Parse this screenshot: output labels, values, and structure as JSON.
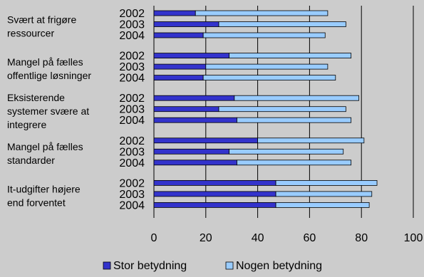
{
  "chart_data": {
    "type": "bar",
    "orientation": "horizontal",
    "stacked": true,
    "groups": [
      {
        "label_lines": [
          "Svært at frigøre",
          "ressourcer"
        ],
        "years": [
          "2002",
          "2003",
          "2004"
        ],
        "stor": [
          16,
          25,
          19
        ],
        "nogen": [
          51,
          49,
          47
        ]
      },
      {
        "label_lines": [
          "Mangel på fælles",
          "offentlige løsninger"
        ],
        "years": [
          "2002",
          "2003",
          "2004"
        ],
        "stor": [
          29,
          20,
          19
        ],
        "nogen": [
          47,
          47,
          51
        ]
      },
      {
        "label_lines": [
          "Eksisterende",
          "systemer svære at",
          "integrere"
        ],
        "years": [
          "2002",
          "2003",
          "2004"
        ],
        "stor": [
          31,
          25,
          32
        ],
        "nogen": [
          48,
          49,
          44
        ]
      },
      {
        "label_lines": [
          "Mangel på fælles",
          "standarder"
        ],
        "years": [
          "2002",
          "2003",
          "2004"
        ],
        "stor": [
          40,
          29,
          32
        ],
        "nogen": [
          41,
          44,
          44
        ]
      },
      {
        "label_lines": [
          "It-udgifter højere",
          "end forventet"
        ],
        "years": [
          "2002",
          "2003",
          "2004"
        ],
        "stor": [
          47,
          47,
          47
        ],
        "nogen": [
          39,
          37,
          36
        ]
      }
    ],
    "series": [
      {
        "name": "Stor betydning",
        "color": "#3333cc"
      },
      {
        "name": "Nogen betydning",
        "color": "#99ccff"
      }
    ],
    "xlim": [
      0,
      100
    ],
    "xticks": [
      "0",
      "20",
      "40",
      "60",
      "80",
      "100"
    ],
    "grid": true,
    "legend_position": "bottom"
  }
}
